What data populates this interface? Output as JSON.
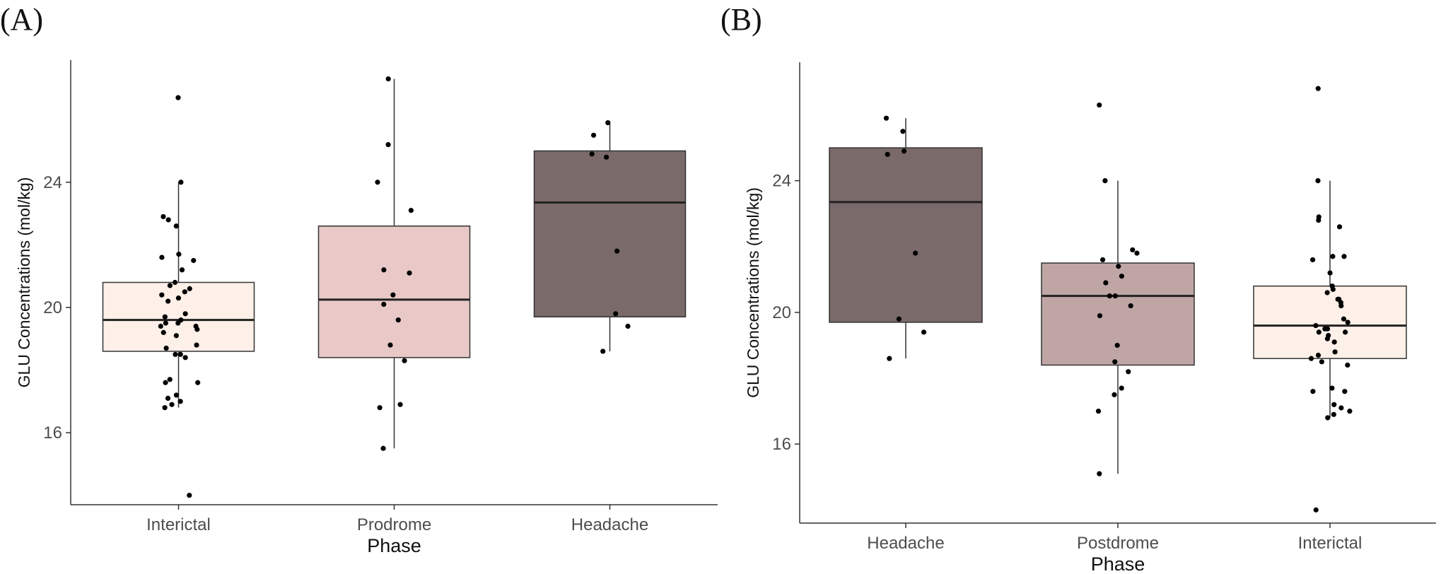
{
  "chart_data": [
    {
      "panel_label": "(A)",
      "type": "box",
      "xlabel": "Phase",
      "ylabel": "GLU Concentrations (mol/kg)",
      "ylim": [
        13.7,
        27.9
      ],
      "yticks": [
        16,
        20,
        24
      ],
      "categories": [
        "Interictal",
        "Prodrome",
        "Headache"
      ],
      "boxes": [
        {
          "category": "Interictal",
          "fill": "#fdf0e8",
          "min": 16.8,
          "q1": 18.6,
          "median": 19.6,
          "q3": 20.8,
          "max": 24.0
        },
        {
          "category": "Prodrome",
          "fill": "#e8c9c7",
          "min": 15.5,
          "q1": 18.4,
          "median": 20.25,
          "q3": 22.6,
          "max": 27.3
        },
        {
          "category": "Headache",
          "fill": "#7a6a69",
          "min": 18.6,
          "q1": 19.7,
          "median": 23.35,
          "q3": 25.0,
          "max": 25.9
        }
      ],
      "points": [
        {
          "category": "Interictal",
          "values": [
            26.7,
            24.0,
            22.9,
            22.8,
            22.6,
            21.7,
            21.6,
            21.5,
            21.2,
            20.8,
            20.7,
            20.6,
            20.5,
            20.4,
            20.3,
            20.2,
            19.8,
            19.7,
            19.6,
            19.5,
            19.5,
            19.4,
            19.4,
            19.3,
            19.2,
            19.1,
            18.8,
            18.7,
            18.5,
            18.5,
            18.4,
            17.7,
            17.6,
            17.6,
            17.2,
            17.1,
            17.0,
            16.9,
            16.8,
            14.0
          ]
        },
        {
          "category": "Prodrome",
          "values": [
            27.3,
            25.2,
            24.0,
            23.1,
            21.2,
            21.1,
            20.4,
            20.1,
            19.6,
            18.8,
            18.3,
            16.9,
            16.8,
            15.5
          ]
        },
        {
          "category": "Headache",
          "values": [
            25.9,
            25.5,
            24.9,
            24.8,
            21.8,
            19.8,
            19.4,
            18.6
          ]
        }
      ]
    },
    {
      "panel_label": "(B)",
      "type": "box",
      "xlabel": "Phase",
      "ylabel": "GLU Concentrations (mol/kg)",
      "ylim": [
        13.6,
        27.6
      ],
      "yticks": [
        16,
        20,
        24
      ],
      "categories": [
        "Headache",
        "Postdrome",
        "Interictal"
      ],
      "boxes": [
        {
          "category": "Headache",
          "fill": "#7a6a69",
          "min": 18.6,
          "q1": 19.7,
          "median": 23.35,
          "q3": 25.0,
          "max": 25.9
        },
        {
          "category": "Postdrome",
          "fill": "#bfa6a5",
          "min": 15.1,
          "q1": 18.4,
          "median": 20.5,
          "q3": 21.5,
          "max": 24.0
        },
        {
          "category": "Interictal",
          "fill": "#fdf0e8",
          "min": 16.8,
          "q1": 18.6,
          "median": 19.6,
          "q3": 20.8,
          "max": 24.0
        }
      ],
      "points": [
        {
          "category": "Headache",
          "values": [
            25.9,
            25.5,
            24.9,
            24.8,
            21.8,
            19.8,
            19.4,
            18.6
          ]
        },
        {
          "category": "Postdrome",
          "values": [
            26.3,
            24.0,
            21.9,
            21.8,
            21.6,
            21.4,
            21.1,
            20.9,
            20.5,
            20.5,
            20.2,
            19.9,
            19.0,
            18.5,
            18.2,
            17.7,
            17.5,
            17.0,
            15.1
          ]
        },
        {
          "category": "Interictal",
          "values": [
            26.8,
            24.0,
            22.9,
            22.8,
            22.6,
            21.7,
            21.7,
            21.6,
            21.2,
            20.8,
            20.7,
            20.6,
            20.4,
            20.4,
            20.3,
            20.2,
            19.8,
            19.7,
            19.6,
            19.5,
            19.5,
            19.4,
            19.4,
            19.3,
            19.2,
            19.1,
            18.8,
            18.7,
            18.6,
            18.5,
            18.4,
            17.7,
            17.6,
            17.6,
            17.2,
            17.1,
            17.0,
            16.9,
            16.8,
            14.0
          ]
        }
      ]
    }
  ]
}
